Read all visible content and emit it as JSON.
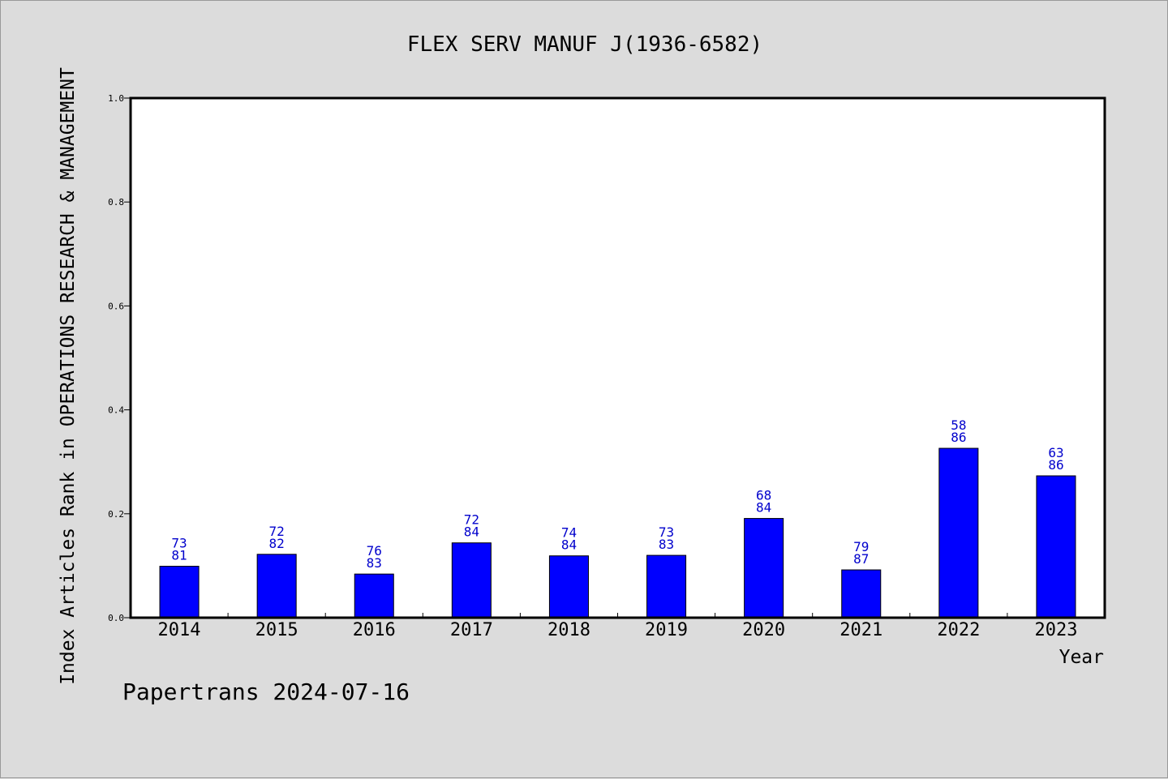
{
  "chart_data": {
    "type": "bar",
    "title": "FLEX SERV MANUF J(1936-6582)",
    "xlabel": "Year",
    "ylabel": "Index Articles Rank in OPERATIONS RESEARCH & MANAGEMENT",
    "ylim": [
      0,
      1.0
    ],
    "yticks": [
      "0.0",
      "0.2",
      "0.4",
      "0.6",
      "0.8",
      "1.0"
    ],
    "categories": [
      "2014",
      "2015",
      "2016",
      "2017",
      "2018",
      "2019",
      "2020",
      "2021",
      "2022",
      "2023"
    ],
    "values": [
      0.099,
      0.122,
      0.084,
      0.144,
      0.119,
      0.12,
      0.191,
      0.092,
      0.326,
      0.273
    ],
    "labels_top": [
      "73",
      "72",
      "76",
      "72",
      "74",
      "73",
      "68",
      "79",
      "58",
      "63"
    ],
    "labels_bottom": [
      "81",
      "82",
      "83",
      "84",
      "84",
      "83",
      "84",
      "87",
      "86",
      "86"
    ],
    "bar_color": "#0000ff",
    "label_color": "#0000cc",
    "grid": false,
    "legend": "none"
  },
  "footer": "Papertrans 2024-07-16"
}
